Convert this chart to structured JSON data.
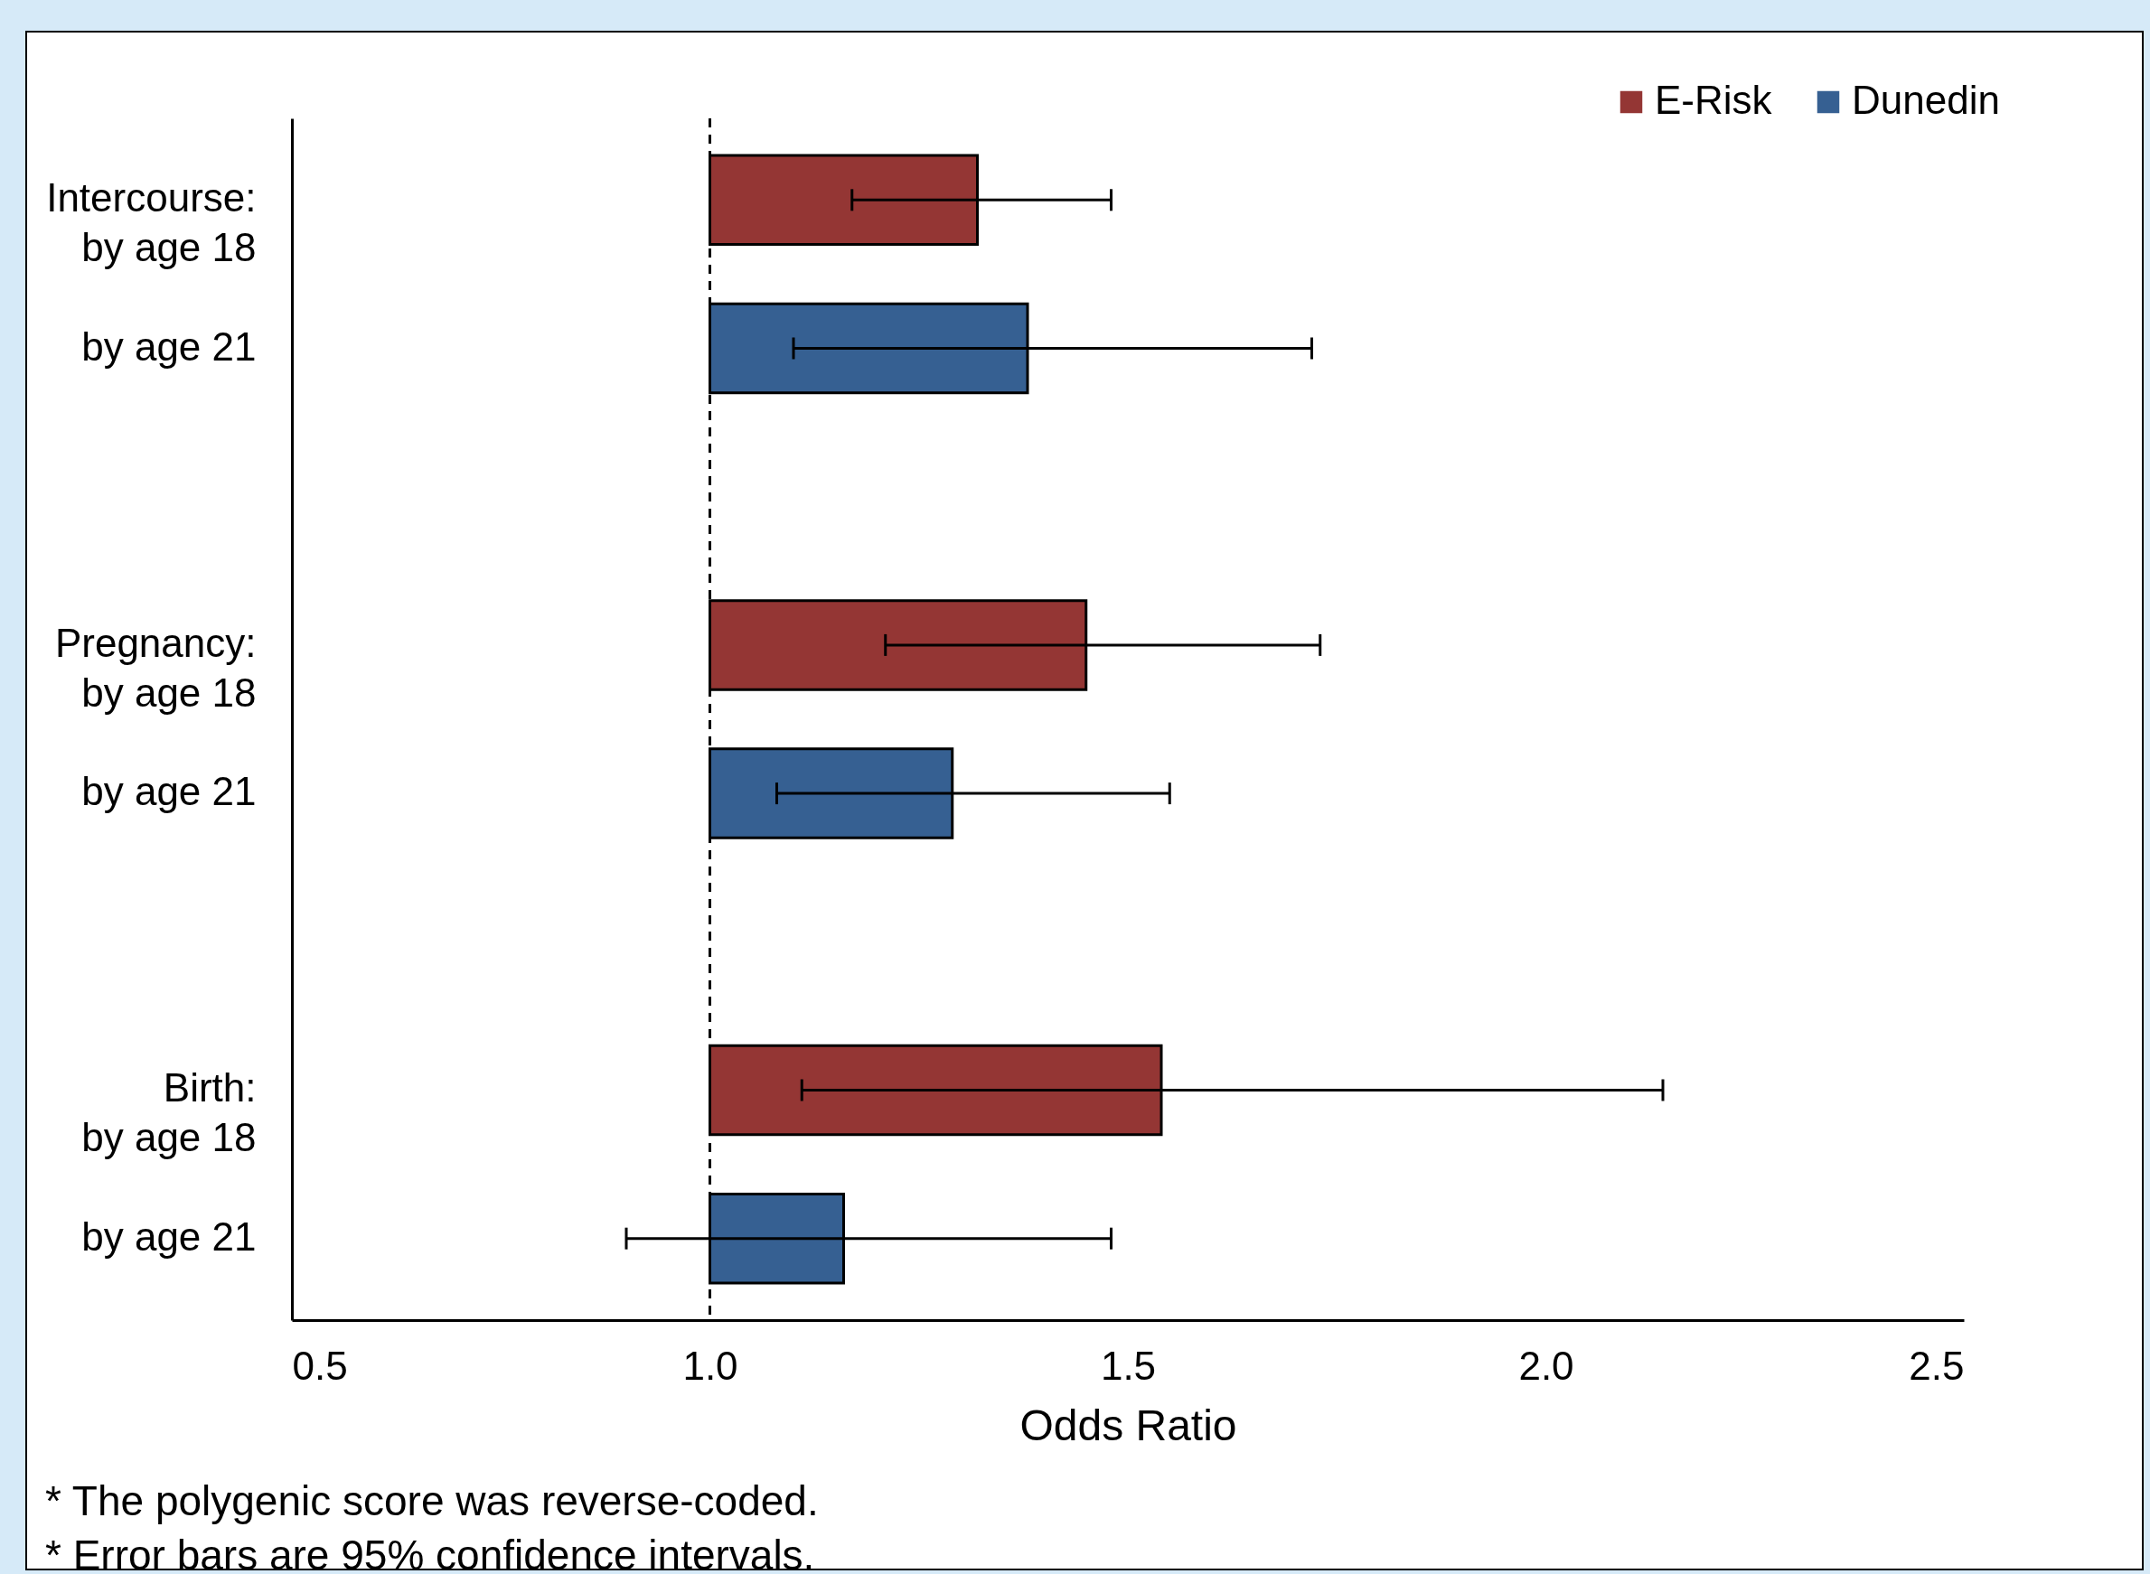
{
  "chart_data": {
    "type": "bar",
    "orientation": "horizontal",
    "xlabel": "Odds Ratio",
    "categories": [
      "Intercourse:\nby age 18",
      "by age 21",
      null,
      "Pregnancy:\nby age 18",
      "by age 21",
      null,
      "Birth:\nby age 18",
      "by age 21"
    ],
    "series": [
      {
        "name": "E-Risk",
        "color": "#943634",
        "values": [
          0.32,
          null,
          null,
          0.45,
          null,
          null,
          0.54,
          null
        ],
        "base": [
          1,
          null,
          null,
          1,
          null,
          null,
          1,
          null
        ],
        "errors": [
          [
            1.17,
            1.48
          ],
          null,
          null,
          [
            1.21,
            1.73
          ],
          null,
          null,
          [
            1.11,
            2.14
          ],
          null
        ]
      },
      {
        "name": "Dunedin",
        "color": "#366092",
        "values": [
          null,
          0.38,
          null,
          null,
          0.29,
          null,
          null,
          0.16
        ],
        "base": [
          null,
          1,
          null,
          null,
          1,
          null,
          null,
          1
        ],
        "errors": [
          null,
          [
            1.1,
            1.72
          ],
          null,
          null,
          [
            1.08,
            1.55
          ],
          null,
          null,
          [
            0.9,
            1.48
          ]
        ]
      }
    ],
    "xlim": [
      0.5,
      2.5
    ],
    "xticks": [
      0.5,
      {
        "value": 1,
        "label": "1.0"
      },
      1.5,
      {
        "value": 2,
        "label": "2.0"
      },
      2.5
    ],
    "ref_lines": [
      {
        "axis": "x",
        "value": 1,
        "line_style": "dashed",
        "color": "#000000"
      }
    ],
    "grid": false,
    "legend": "top right",
    "annotations": [
      "* The polygenic score was reverse-coded.",
      "* Error bars are 95% confidence intervals."
    ]
  }
}
